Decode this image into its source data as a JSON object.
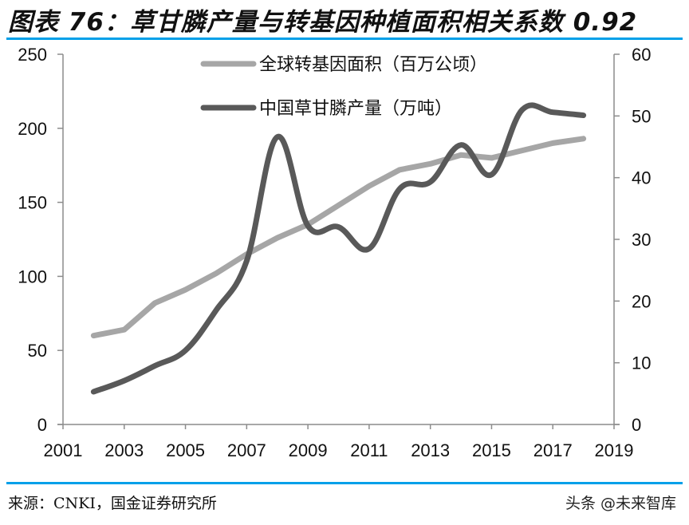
{
  "title": "图表 76：草甘膦产量与转基因种植面积相关系数 0.92",
  "source": "来源：CNKI，国金证券研究所",
  "watermark": "头条 @未来智库",
  "colors": {
    "accent_rule": "#00A0E9",
    "series_area": "#A6A6A6",
    "series_glyphosate": "#595959",
    "axis": "#8C8C8C"
  },
  "chart_data": {
    "type": "line",
    "title": "草甘膦产量与转基因种植面积相关系数 0.92",
    "xlabel": "",
    "ylabel_left": "全球转基因面积（百万公顷）",
    "ylabel_right": "中国草甘膦产量（万吨）",
    "x_ticks": [
      "2001",
      "2003",
      "2005",
      "2007",
      "2009",
      "2011",
      "2013",
      "2015",
      "2017",
      "2019"
    ],
    "y_left_ticks": [
      "0",
      "50",
      "100",
      "150",
      "200",
      "250"
    ],
    "y_right_ticks": [
      "0",
      "10",
      "20",
      "30",
      "40",
      "50",
      "60"
    ],
    "ylim_left": [
      0,
      250
    ],
    "ylim_right": [
      0,
      60
    ],
    "xlim": [
      2001,
      2019
    ],
    "grid": false,
    "legend_position": "top-center",
    "x": [
      2002,
      2003,
      2004,
      2005,
      2006,
      2007,
      2008,
      2009,
      2010,
      2011,
      2012,
      2013,
      2014,
      2015,
      2016,
      2017,
      2018
    ],
    "series": [
      {
        "name": "全球转基因面积（百万公顷）",
        "axis": "left",
        "smooth": false,
        "values": [
          60,
          64,
          82,
          91,
          102,
          115,
          126,
          135,
          148,
          161,
          172,
          176,
          182,
          180,
          185,
          190,
          193
        ]
      },
      {
        "name": "中国草甘膦产量（万吨）",
        "axis": "right",
        "smooth": true,
        "values": [
          5.3,
          7.1,
          9.5,
          12.0,
          18.5,
          26.5,
          46.6,
          32.2,
          32.0,
          28.5,
          38.2,
          39.3,
          45.3,
          40.5,
          51.0,
          50.6,
          50.1
        ]
      }
    ]
  }
}
